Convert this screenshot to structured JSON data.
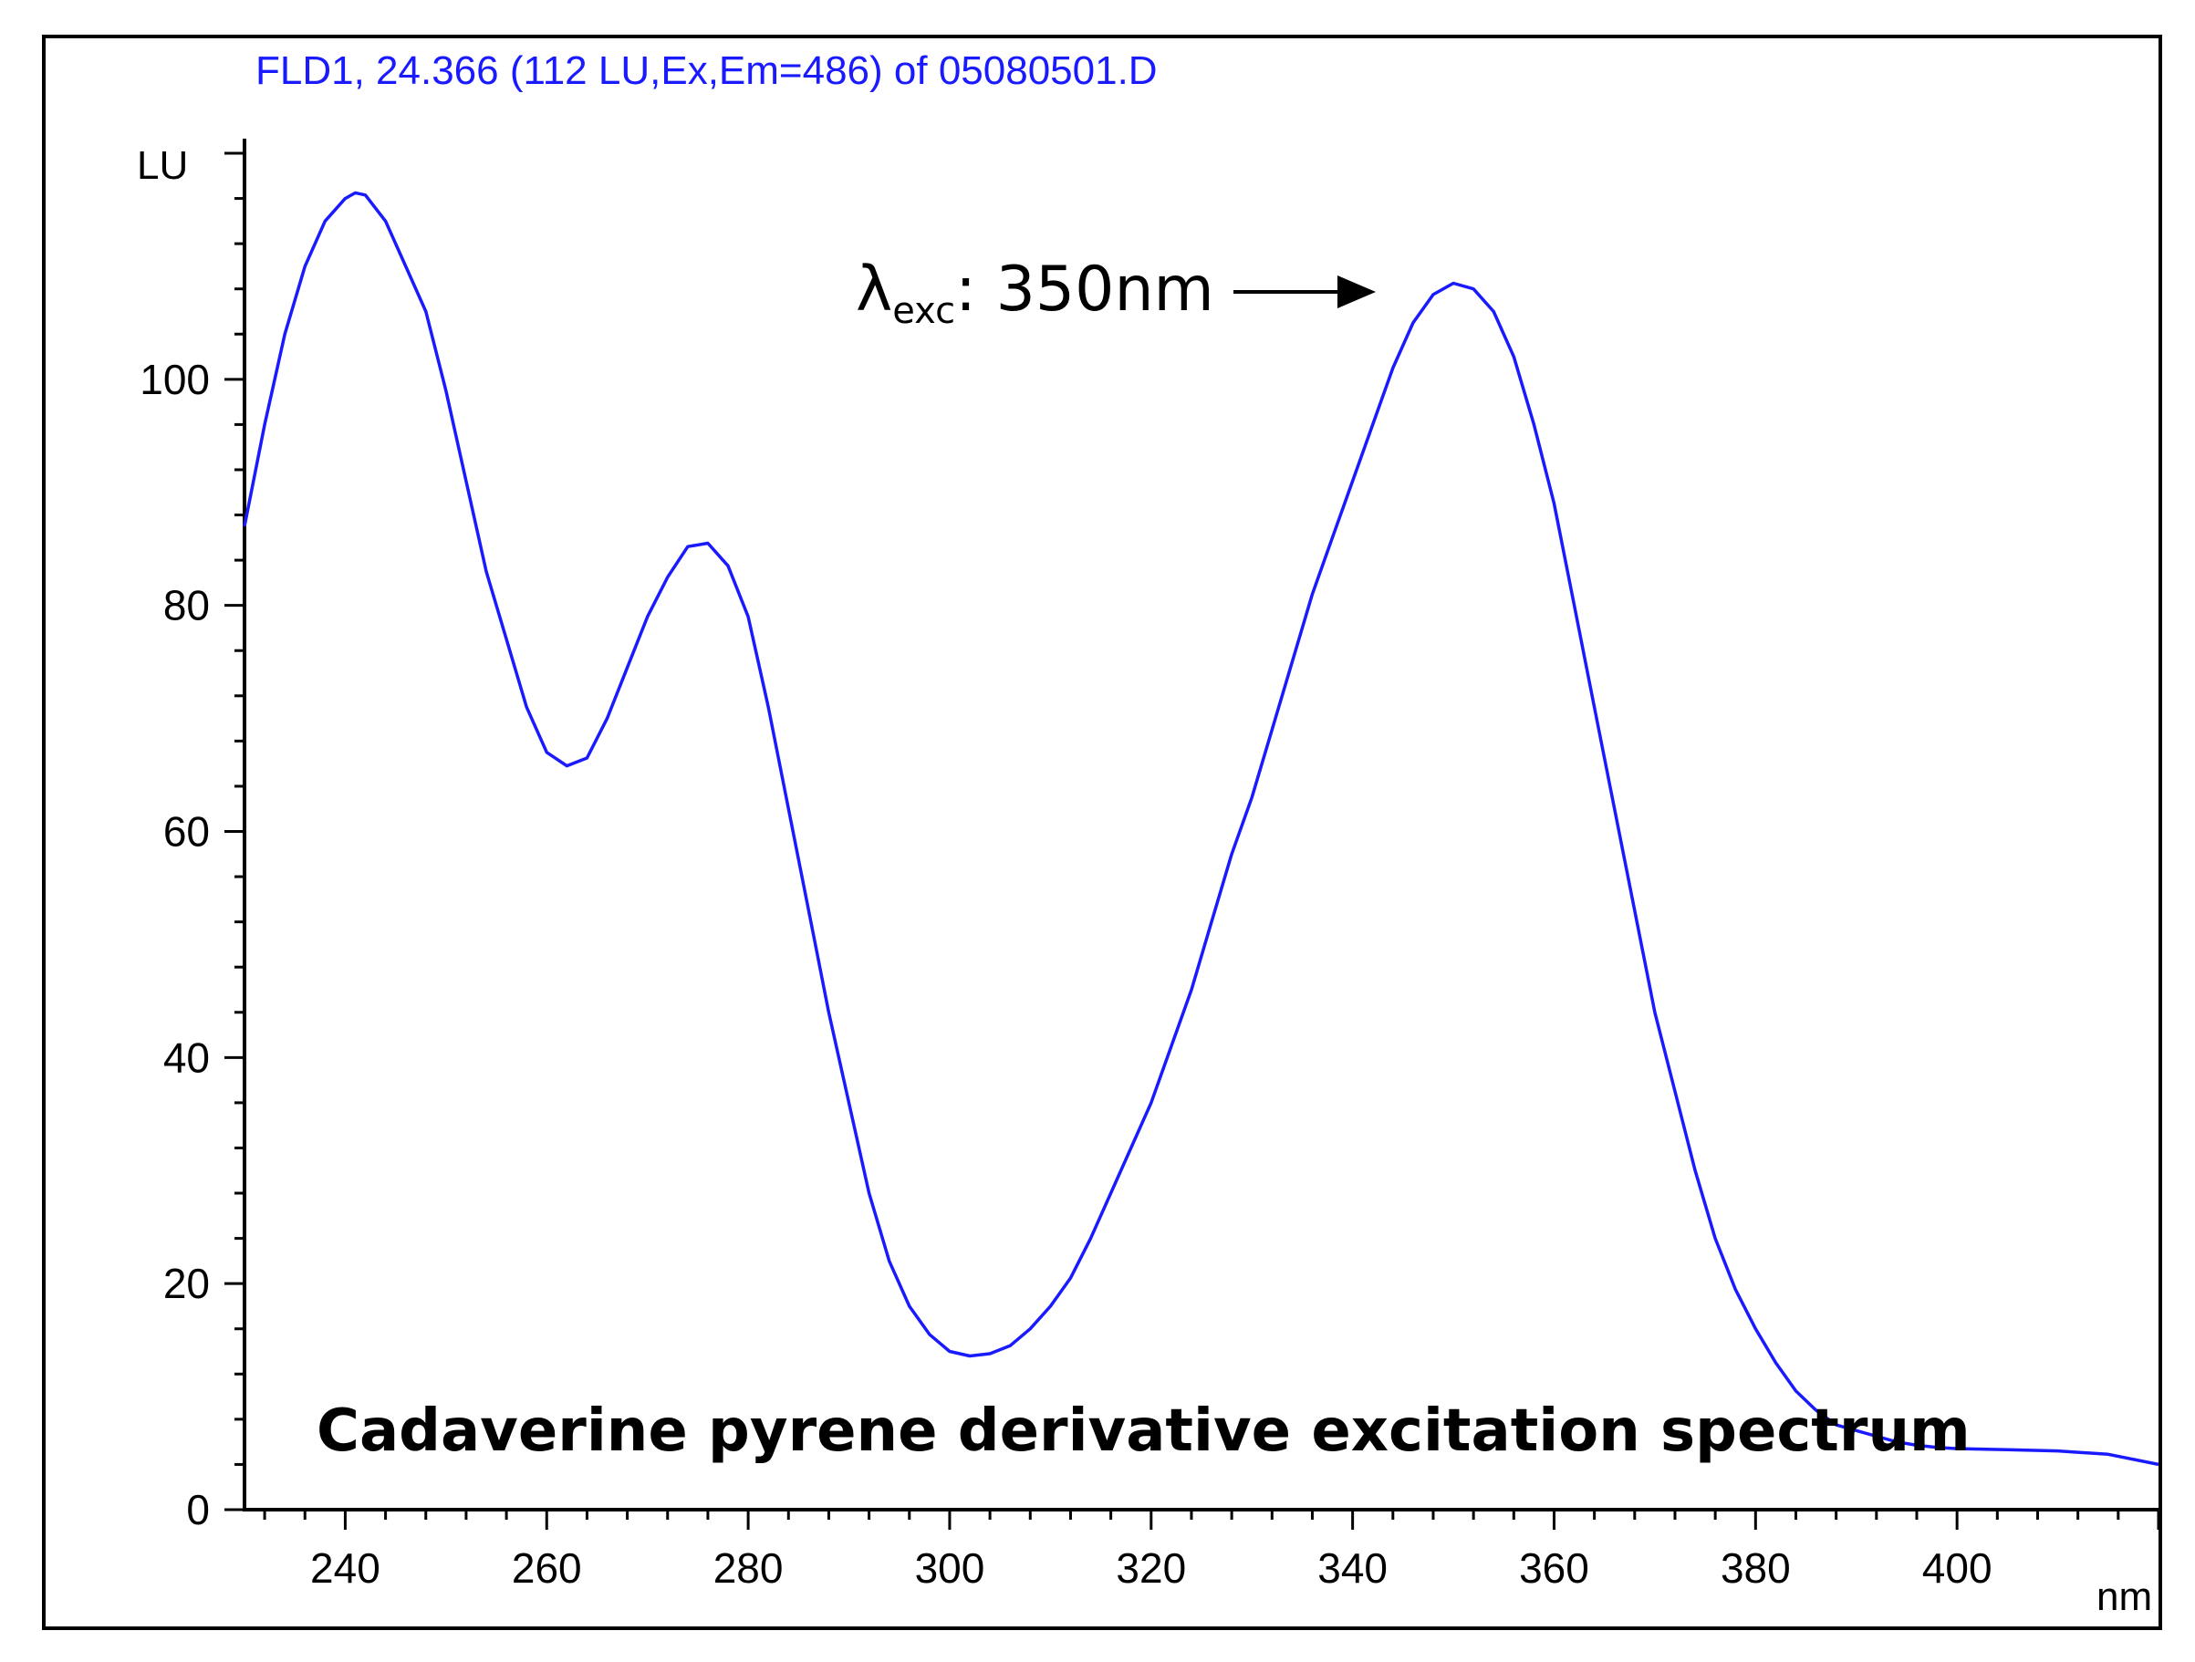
{
  "chart_data": {
    "type": "line",
    "header": "FLD1, 24.366 (112 LU,Ex,Em=486) of 05080501.D",
    "ylabel": "LU",
    "xlabel": "nm",
    "xlim": [
      230,
      420
    ],
    "ylim": [
      0,
      120
    ],
    "x_ticks": [
      240,
      260,
      280,
      300,
      320,
      340,
      360,
      380,
      400
    ],
    "y_ticks": [
      0,
      20,
      40,
      60,
      80,
      100
    ],
    "grid": false,
    "color": "#1a1aff",
    "annotation": {
      "prefix": "λ",
      "subscript": "exc",
      "text": ": 350nm",
      "arrow_to": {
        "x": 350,
        "y": 108.5
      }
    },
    "caption": "Cadaverine pyrene derivative excitation spectrum",
    "series": [
      {
        "x": [
          230,
          232,
          234,
          236,
          238,
          240,
          241,
          242,
          244,
          246,
          248,
          250,
          252,
          254,
          256,
          258,
          260,
          262,
          264,
          266,
          268,
          270,
          272,
          274,
          276,
          278,
          280,
          282,
          284,
          286,
          288,
          290,
          292,
          294,
          296,
          298,
          300,
          302,
          304,
          306,
          308,
          310,
          312,
          314,
          316,
          318,
          320,
          322,
          324,
          326,
          328,
          330,
          332,
          334,
          336,
          338,
          340,
          342,
          344,
          346,
          348,
          350,
          352,
          354,
          356,
          358,
          360,
          362,
          364,
          366,
          368,
          370,
          372,
          374,
          376,
          378,
          380,
          382,
          384,
          386,
          388,
          390,
          392,
          394,
          396,
          398,
          400,
          405,
          410,
          415,
          420
        ],
        "y": [
          87,
          96,
          104,
          110,
          114,
          116,
          116.5,
          116.3,
          114,
          110,
          106,
          99,
          91,
          83,
          77,
          71,
          67,
          65.8,
          66.5,
          70,
          74.5,
          79,
          82.5,
          85.2,
          85.5,
          83.5,
          79,
          71,
          62,
          53,
          44,
          36,
          28,
          22,
          18,
          15.5,
          14,
          13.6,
          13.8,
          14.5,
          16,
          18,
          20.5,
          24,
          28,
          32,
          36,
          41,
          46,
          52,
          58,
          63,
          69,
          75,
          81,
          86,
          91,
          96,
          101,
          105,
          107.5,
          108.5,
          108,
          106,
          102,
          96,
          89,
          80,
          71,
          62,
          53,
          44,
          37,
          30,
          24,
          19.5,
          16,
          13,
          10.5,
          8.8,
          7.5,
          7,
          6.5,
          6,
          5.7,
          5.5,
          5.4,
          5.3,
          5.2,
          4.9,
          4
        ]
      }
    ]
  }
}
